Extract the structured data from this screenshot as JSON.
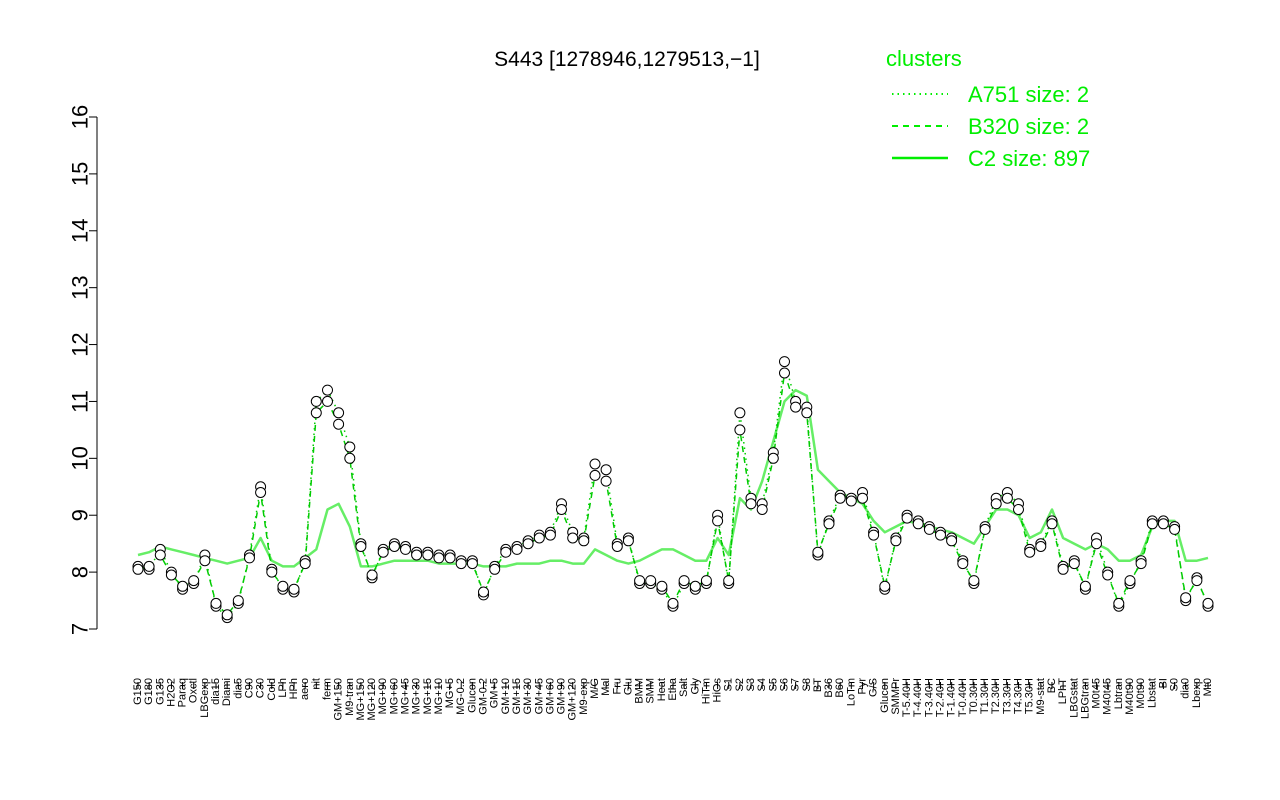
{
  "chart_data": {
    "type": "line",
    "title": "S443 [1278946,1279513,−1]",
    "xlabel": "",
    "ylabel": "",
    "ylim": [
      7,
      16
    ],
    "yticks": [
      7,
      8,
      9,
      10,
      11,
      12,
      13,
      14,
      15,
      16
    ],
    "grid": false,
    "legend": {
      "title": "clusters",
      "placement": "top-right",
      "entries": [
        {
          "label": "A751 size: 2",
          "style": "dotted"
        },
        {
          "label": "B320 size: 2",
          "style": "dashed"
        },
        {
          "label": "C2 size: 897",
          "style": "solid"
        }
      ]
    },
    "x_tick_labels": [
      "G150",
      "G180",
      "G135",
      "H2O2",
      "Paraq",
      "Oxctl",
      "LBGexp",
      "dia15",
      "Diami",
      "dia5",
      "C90",
      "C30",
      "Cold",
      "LPh",
      "HPh",
      "aero",
      "nit",
      "ferm",
      "GM+150",
      "M9-tran",
      "MG+150",
      "MG+120",
      "MG+90",
      "MG+60",
      "MG+45",
      "MG+30",
      "MG+15",
      "MG+10",
      "MG+5",
      "MG-0.2",
      "Glucon",
      "GM-0.2",
      "GM+5",
      "GM+10",
      "GM+15",
      "GM+30",
      "GM+45",
      "GM+60",
      "GM+90",
      "GM+120",
      "M9-exp",
      "M/G",
      "Mal",
      "Fru",
      "Glu",
      "BMM",
      "SMM",
      "Heat",
      "Etha",
      "Salt",
      "Gly",
      "HiTm",
      "HiOs",
      "S1",
      "S2",
      "S3",
      "S4",
      "S5",
      "S6",
      "S7",
      "S8",
      "BT",
      "B36",
      "B60",
      "LoTm",
      "Pyr",
      "G/S",
      "Glucon",
      "SMMPr",
      "T-5.40H",
      "T-4.40H",
      "T-3.40H",
      "T-2.40H",
      "T-1.40H",
      "T-0.40H",
      "T0.30H",
      "T1.30H",
      "T2.30H",
      "T3.30H",
      "T4.30H",
      "T5.30H",
      "M9-stat",
      "BC",
      "LPhT",
      "LBGstat",
      "LBGtran",
      "M0t45",
      "M40t45",
      "Lbtran",
      "M40t90",
      "M0t90",
      "Lbstat",
      "BI",
      "S0",
      "dia0",
      "Lbexp",
      "Mt0"
    ],
    "series": [
      {
        "name": "A751 size: 2",
        "style": "dotted",
        "values": [
          8.1,
          8.05,
          8.4,
          8.0,
          7.7,
          7.8,
          8.3,
          7.4,
          7.2,
          7.45,
          8.3,
          9.5,
          8.05,
          7.7,
          7.65,
          8.2,
          11.0,
          11.2,
          10.8,
          10.2,
          8.5,
          7.9,
          8.4,
          8.5,
          8.45,
          8.35,
          8.35,
          8.3,
          8.3,
          8.2,
          8.2,
          7.6,
          8.1,
          8.4,
          8.45,
          8.55,
          8.65,
          8.7,
          9.2,
          8.7,
          8.6,
          9.9,
          9.8,
          8.5,
          8.6,
          7.8,
          7.8,
          7.7,
          7.4,
          7.8,
          7.7,
          7.8,
          9.0,
          7.8,
          10.8,
          9.3,
          9.2,
          10.1,
          11.7,
          11.0,
          10.9,
          8.3,
          8.9,
          9.35,
          9.3,
          9.4,
          8.7,
          7.7,
          8.6,
          9.0,
          8.9,
          8.8,
          8.7,
          8.6,
          8.2,
          7.8,
          8.8,
          9.3,
          9.4,
          9.2,
          8.4,
          8.5,
          8.9,
          8.1,
          8.2,
          7.7,
          8.6,
          8.0,
          7.4,
          7.8,
          8.2,
          8.9,
          8.9,
          8.8,
          7.5,
          7.9,
          7.4
        ]
      },
      {
        "name": "B320 size: 2",
        "style": "dashed",
        "values": [
          8.05,
          8.1,
          8.3,
          7.95,
          7.75,
          7.85,
          8.2,
          7.45,
          7.25,
          7.5,
          8.25,
          9.4,
          8.0,
          7.75,
          7.7,
          8.15,
          10.8,
          11.0,
          10.6,
          10.0,
          8.45,
          7.95,
          8.35,
          8.45,
          8.4,
          8.3,
          8.3,
          8.25,
          8.25,
          8.15,
          8.15,
          7.65,
          8.05,
          8.35,
          8.4,
          8.5,
          8.6,
          8.65,
          9.1,
          8.6,
          8.55,
          9.7,
          9.6,
          8.45,
          8.55,
          7.85,
          7.85,
          7.75,
          7.45,
          7.85,
          7.75,
          7.85,
          8.9,
          7.85,
          10.5,
          9.2,
          9.1,
          10.0,
          11.5,
          10.9,
          10.8,
          8.35,
          8.85,
          9.3,
          9.25,
          9.3,
          8.65,
          7.75,
          8.55,
          8.95,
          8.85,
          8.75,
          8.65,
          8.55,
          8.15,
          7.85,
          8.75,
          9.2,
          9.3,
          9.1,
          8.35,
          8.45,
          8.85,
          8.05,
          8.15,
          7.75,
          8.5,
          7.95,
          7.45,
          7.85,
          8.15,
          8.85,
          8.85,
          8.75,
          7.55,
          7.85,
          7.45
        ]
      },
      {
        "name": "C2 size: 897",
        "style": "solid",
        "values": [
          8.3,
          8.35,
          8.45,
          8.4,
          8.35,
          8.3,
          8.25,
          8.2,
          8.15,
          8.2,
          8.25,
          8.6,
          8.2,
          8.1,
          8.1,
          8.25,
          8.4,
          9.1,
          9.2,
          8.8,
          8.1,
          8.1,
          8.15,
          8.2,
          8.2,
          8.2,
          8.2,
          8.15,
          8.15,
          8.15,
          8.15,
          8.1,
          8.1,
          8.1,
          8.15,
          8.15,
          8.15,
          8.2,
          8.2,
          8.15,
          8.15,
          8.4,
          8.3,
          8.2,
          8.15,
          8.2,
          8.3,
          8.4,
          8.4,
          8.3,
          8.2,
          8.2,
          8.6,
          8.3,
          9.3,
          9.1,
          9.6,
          10.3,
          11.0,
          11.2,
          11.1,
          9.8,
          9.6,
          9.4,
          9.3,
          9.2,
          8.9,
          8.7,
          8.8,
          8.9,
          8.85,
          8.8,
          8.75,
          8.7,
          8.6,
          8.5,
          8.8,
          9.1,
          9.1,
          9.0,
          8.6,
          8.7,
          9.1,
          8.6,
          8.5,
          8.4,
          8.5,
          8.4,
          8.2,
          8.2,
          8.3,
          8.8,
          8.9,
          8.9,
          8.2,
          8.2,
          8.25
        ]
      }
    ]
  }
}
